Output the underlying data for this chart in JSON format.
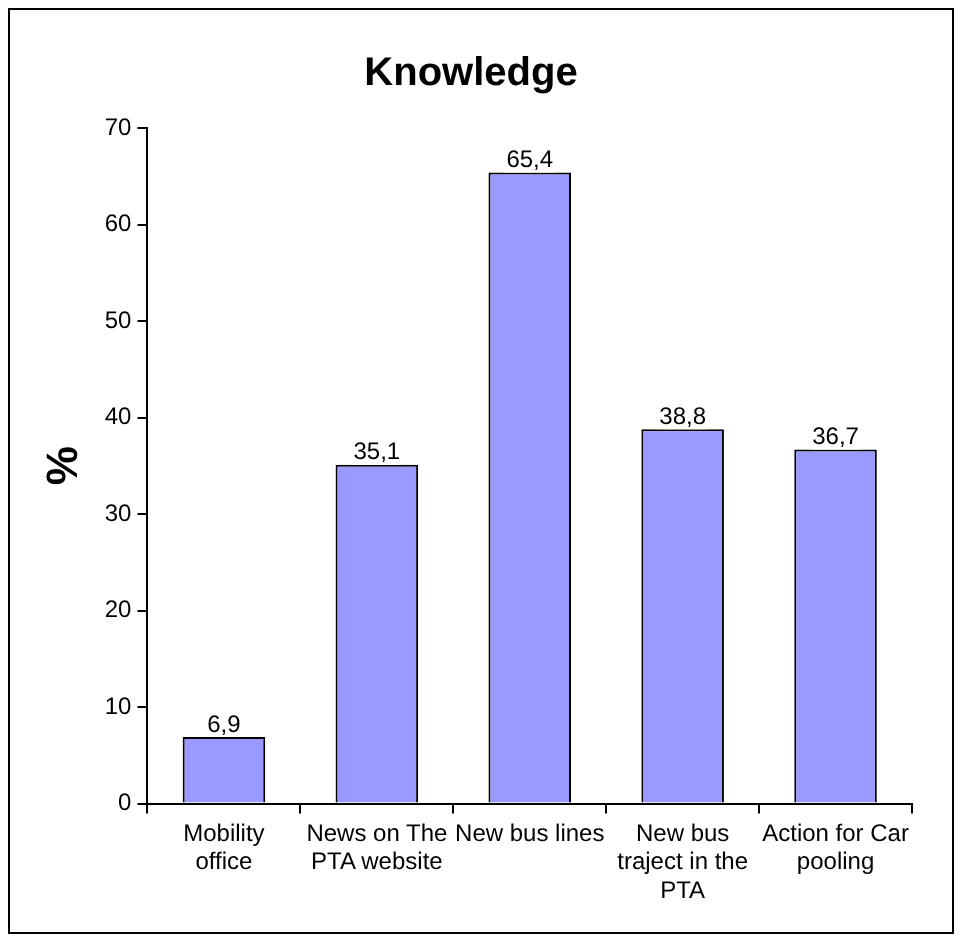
{
  "chart_data": {
    "type": "bar",
    "title": "Knowledge",
    "ylabel": "%",
    "categories": [
      "Mobility office",
      "News on The PTA website",
      "New bus lines",
      "New bus traject in the PTA",
      "Action for Car pooling"
    ],
    "values": [
      6.9,
      35.1,
      65.4,
      38.8,
      36.7
    ],
    "value_labels": [
      "6,9",
      "35,1",
      "65,4",
      "38,8",
      "36,7"
    ],
    "color": "#9999ff",
    "ylim": [
      0,
      70
    ],
    "yticks": [
      0,
      10,
      20,
      30,
      40,
      50,
      60,
      70
    ],
    "grid": false,
    "legend": false
  }
}
